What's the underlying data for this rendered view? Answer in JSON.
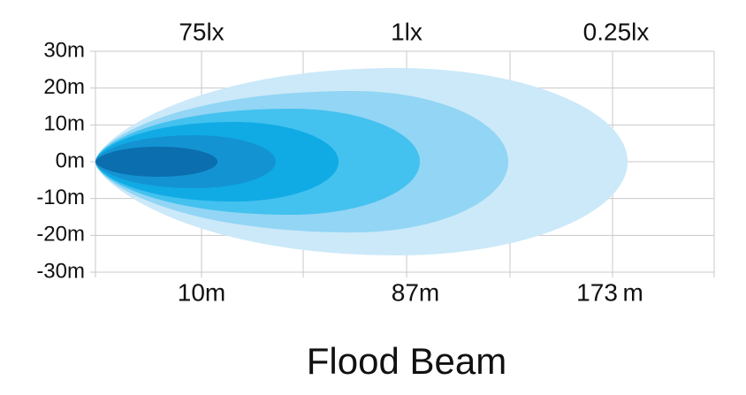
{
  "axis": {
    "y_labels": [
      "30m",
      "20m",
      "10m",
      "0m",
      "-10m",
      "-20m",
      "-30m"
    ]
  },
  "top_labels": [
    "75lx",
    "1lx",
    "0.25lx"
  ],
  "bottom_labels": [
    "10m",
    "87m",
    "173 m"
  ],
  "title": "Flood Beam"
}
